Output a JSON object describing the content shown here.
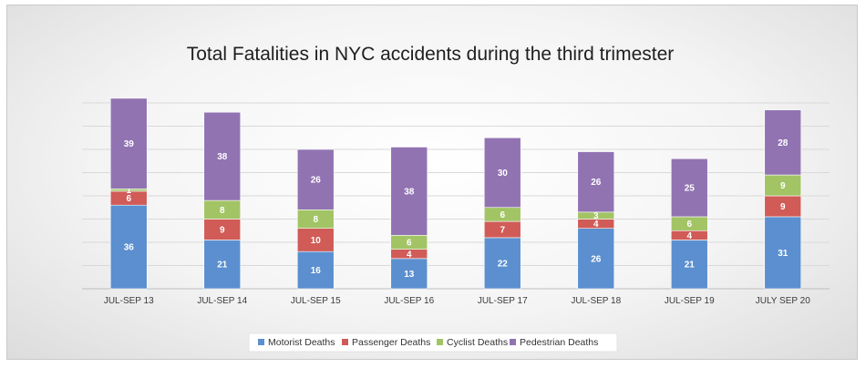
{
  "chart_data": {
    "type": "bar",
    "stacked": true,
    "title": "Total Fatalities in NYC accidents during the third trimester",
    "xlabel": "",
    "ylabel": "",
    "ylim": [
      0,
      80
    ],
    "grid": true,
    "legend_position": "bottom",
    "categories": [
      "JUL-SEP 13",
      "JUL-SEP 14",
      "JUL-SEP 15",
      "JUL-SEP 16",
      "JUL-SEP 17",
      "JUL-SEP 18",
      "JUL-SEP 19",
      "JULY SEP 20"
    ],
    "series": [
      {
        "name": "Motorist Deaths",
        "color": "#5b8fcf",
        "values": [
          36,
          21,
          16,
          13,
          22,
          26,
          21,
          31
        ]
      },
      {
        "name": "Passenger Deaths",
        "color": "#d05b57",
        "values": [
          6,
          9,
          10,
          4,
          7,
          4,
          4,
          9
        ]
      },
      {
        "name": "Cyclist Deaths",
        "color": "#a2c465",
        "values": [
          1,
          8,
          8,
          6,
          6,
          3,
          6,
          9
        ]
      },
      {
        "name": "Pedestrian Deaths",
        "color": "#9173b2",
        "values": [
          39,
          38,
          26,
          38,
          30,
          26,
          25,
          28
        ]
      }
    ]
  }
}
